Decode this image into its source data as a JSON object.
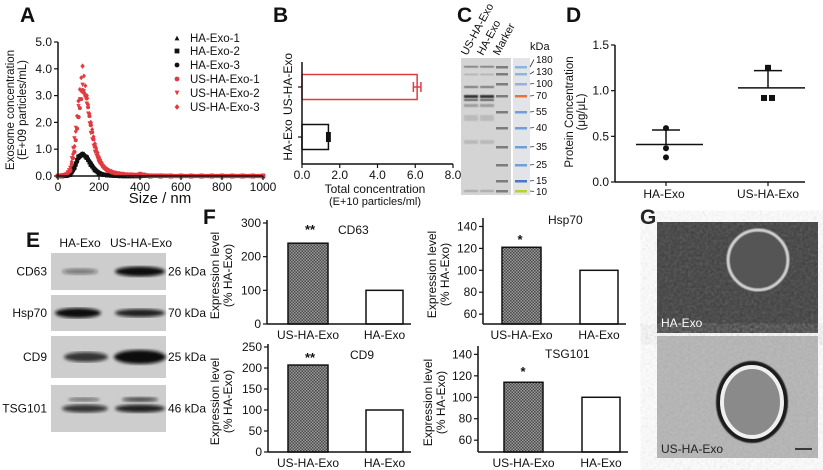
{
  "panel_labels": {
    "A": "A",
    "B": "B",
    "C": "C",
    "D": "D",
    "E": "E",
    "F": "F",
    "G": "G"
  },
  "colors": {
    "us_red": "#e23b3f",
    "black": "#111111",
    "hatched_bar": "#7a7a7a",
    "marker_orange": "#e8743b",
    "marker_blue": "#6f9fd6",
    "marker_green": "#b8d234"
  },
  "chart_data": [
    {
      "id": "A",
      "type": "scatter",
      "xlabel": "Size / nm",
      "ylabel": [
        "Exosome concentration",
        "(E+09 particles/mL)"
      ],
      "xlim": [
        0,
        1000
      ],
      "ylim": [
        0,
        5
      ],
      "xticks": [
        "0",
        "200",
        "400",
        "600",
        "800",
        "1000"
      ],
      "yticks": [
        "0.0",
        "1.0",
        "2.0",
        "3.0",
        "4.0",
        "5.0"
      ],
      "legend_position": "top-right",
      "x": [
        0,
        20,
        40,
        60,
        80,
        100,
        120,
        140,
        160,
        180,
        200,
        220,
        240,
        260,
        280,
        300,
        320,
        340,
        360,
        380,
        400,
        450,
        500,
        550,
        600,
        650,
        700,
        750,
        800,
        850,
        900,
        950,
        1000
      ],
      "series": [
        {
          "name": "HA-Exo-1",
          "color": "#111111",
          "marker": "triangle",
          "values": [
            0,
            0,
            0.01,
            0.05,
            0.3,
            0.7,
            0.85,
            0.7,
            0.45,
            0.25,
            0.12,
            0.06,
            0.03,
            0.02,
            0.01,
            0.01,
            0,
            0,
            0,
            0,
            0,
            0,
            0,
            0,
            0,
            0,
            0,
            0,
            0,
            0,
            0,
            0,
            0
          ]
        },
        {
          "name": "HA-Exo-2",
          "color": "#111111",
          "marker": "square",
          "values": [
            0,
            0,
            0.01,
            0.06,
            0.35,
            0.72,
            0.82,
            0.68,
            0.42,
            0.22,
            0.1,
            0.05,
            0.03,
            0.02,
            0.01,
            0,
            0,
            0,
            0,
            0,
            0,
            0,
            0,
            0,
            0,
            0,
            0,
            0,
            0,
            0,
            0,
            0,
            0
          ]
        },
        {
          "name": "HA-Exo-3",
          "color": "#111111",
          "marker": "circle",
          "values": [
            0,
            0,
            0.01,
            0.04,
            0.28,
            0.66,
            0.8,
            0.72,
            0.48,
            0.26,
            0.13,
            0.06,
            0.03,
            0.02,
            0.01,
            0,
            0,
            0,
            0,
            0,
            0,
            0,
            0,
            0,
            0,
            0,
            0,
            0,
            0,
            0,
            0,
            0,
            0
          ]
        },
        {
          "name": "US-HA-Exo-1",
          "color": "#e23b3f",
          "marker": "circle",
          "values": [
            0,
            0.02,
            0.05,
            0.2,
            0.9,
            2.2,
            3.2,
            2.9,
            1.9,
            1.1,
            0.6,
            0.35,
            0.2,
            0.15,
            0.1,
            0.08,
            0.06,
            0.05,
            0.04,
            0.03,
            0.03,
            0.01,
            0.01,
            0,
            0,
            0,
            0,
            0,
            0,
            0,
            0,
            0,
            0
          ]
        },
        {
          "name": "US-HA-Exo-2",
          "color": "#e23b3f",
          "marker": "triangle-down",
          "values": [
            0,
            0.02,
            0.06,
            0.3,
            1.4,
            2.6,
            3.4,
            2.7,
            1.6,
            0.9,
            0.5,
            0.3,
            0.2,
            0.12,
            0.1,
            0.07,
            0.05,
            0.04,
            0.04,
            0.03,
            0.03,
            0.01,
            0.01,
            0,
            0,
            0,
            0,
            0,
            0,
            0,
            0,
            0,
            0
          ]
        },
        {
          "name": "US-HA-Exo-3",
          "color": "#e23b3f",
          "marker": "diamond",
          "values": [
            0,
            0.02,
            0.05,
            0.25,
            1.1,
            2.8,
            4.1,
            3.0,
            2.0,
            1.2,
            0.7,
            0.4,
            0.25,
            0.17,
            0.12,
            0.09,
            0.07,
            0.05,
            0.05,
            0.04,
            0.08,
            0.01,
            0.01,
            0,
            0,
            0,
            0,
            0,
            0,
            0,
            0,
            0,
            0
          ]
        }
      ]
    },
    {
      "id": "B",
      "type": "bar",
      "orientation": "horizontal",
      "categories": [
        "US-HA-Exo",
        "HA-Exo"
      ],
      "values": [
        6.1,
        1.4
      ],
      "errors": [
        0.2,
        0.05
      ],
      "colors": [
        "#e23b3f",
        "#111111"
      ],
      "xlabel": [
        "Total concentration",
        "(E+10 particles/ml)"
      ],
      "xlim": [
        0,
        8
      ],
      "xticks": [
        "0.0",
        "2.0",
        "4.0",
        "6.0",
        "8.0"
      ]
    },
    {
      "id": "D",
      "type": "scatter",
      "categories": [
        "HA-Exo",
        "US-HA-Exo"
      ],
      "points": [
        [
          0.59,
          0.37,
          0.27
        ],
        [
          1.25,
          0.92,
          0.92
        ]
      ],
      "markers": [
        "circle",
        "square"
      ],
      "means": [
        0.41,
        1.03
      ],
      "sd_upper": [
        0.57,
        1.22
      ],
      "ylabel": [
        "Protein Concentration",
        "(μg/μL)"
      ],
      "ylim": [
        0,
        1.5
      ],
      "yticks": [
        "0.0",
        "0.5",
        "1.0",
        "1.5"
      ]
    },
    {
      "id": "F-CD63",
      "type": "bar",
      "title": "CD63",
      "categories": [
        "US-HA-Exo",
        "HA-Exo"
      ],
      "values": [
        240,
        100
      ],
      "significance": "**",
      "ylabel": [
        "Expression level",
        "(% HA-Exo)"
      ],
      "ylim": [
        0,
        300
      ],
      "yticks": [
        "0",
        "100",
        "200",
        "300"
      ]
    },
    {
      "id": "F-Hsp70",
      "type": "bar",
      "title": "Hsp70",
      "categories": [
        "US-HA-Exo",
        "HA-Exo"
      ],
      "values": [
        121,
        100
      ],
      "significance": "*",
      "ylabel": [
        "Expression level",
        "(% HA-Exo)"
      ],
      "ylim": [
        51,
        145
      ],
      "yticks": [
        "60",
        "80",
        "100",
        "120",
        "140"
      ]
    },
    {
      "id": "F-CD9",
      "type": "bar",
      "title": "CD9",
      "categories": [
        "US-HA-Exo",
        "HA-Exo"
      ],
      "values": [
        207,
        100
      ],
      "significance": "**",
      "ylabel": [
        "Expression level",
        "(% HA-Exo)"
      ],
      "ylim": [
        0,
        250
      ],
      "yticks": [
        "0",
        "50",
        "100",
        "150",
        "200",
        "250"
      ]
    },
    {
      "id": "F-TSG101",
      "type": "bar",
      "title": "TSG101",
      "categories": [
        "US-HA-Exo",
        "HA-Exo"
      ],
      "values": [
        114,
        100
      ],
      "significance": "*",
      "ylabel": [
        "Expression level",
        "(% HA-Exo)"
      ],
      "ylim": [
        49,
        145
      ],
      "yticks": [
        "60",
        "80",
        "100",
        "120",
        "140"
      ]
    }
  ],
  "gel": {
    "lanes": [
      "US-HA-Exo",
      "HA-Exo",
      "Marker"
    ],
    "unit": "kDa",
    "markers": [
      "180",
      "130",
      "100",
      "70",
      "55",
      "40",
      "35",
      "25",
      "15",
      "10"
    ]
  },
  "western": {
    "columns": [
      "HA-Exo",
      "US-HA-Exo"
    ],
    "rows": [
      {
        "protein": "CD63",
        "size": "26 kDa"
      },
      {
        "protein": "Hsp70",
        "size": "70 kDa"
      },
      {
        "protein": "CD9",
        "size": "25 kDa"
      },
      {
        "protein": "TSG101",
        "size": "46 kDa"
      }
    ]
  },
  "tem": {
    "images": [
      "HA-Exo",
      "US-HA-Exo"
    ]
  }
}
